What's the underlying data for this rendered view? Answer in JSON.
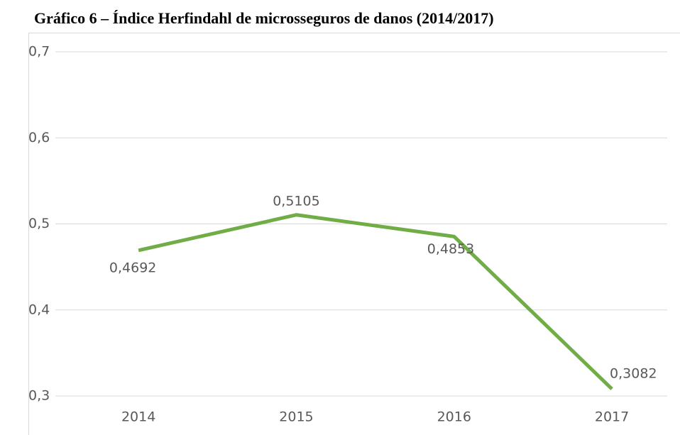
{
  "chart_data": {
    "type": "line",
    "title": "Gráfico 6 – Índice Herfindahl de microsseguros de danos (2014/2017)",
    "categories": [
      "2014",
      "2015",
      "2016",
      "2017"
    ],
    "series": [
      {
        "name": "Índice Herfindahl",
        "color": "#70ad47",
        "values": [
          0.4692,
          0.5105,
          0.4853,
          0.3082
        ],
        "value_labels": [
          "0,4692",
          "0,5105",
          "0,4853",
          "0,3082"
        ]
      }
    ],
    "ylim": [
      0.3,
      0.7
    ],
    "yticks": [
      {
        "value": 0.3,
        "label": "0,3"
      },
      {
        "value": 0.4,
        "label": "0,4"
      },
      {
        "value": 0.5,
        "label": "0,5"
      },
      {
        "value": 0.6,
        "label": "0,6"
      },
      {
        "value": 0.7,
        "label": "0,7"
      }
    ],
    "grid": true
  }
}
